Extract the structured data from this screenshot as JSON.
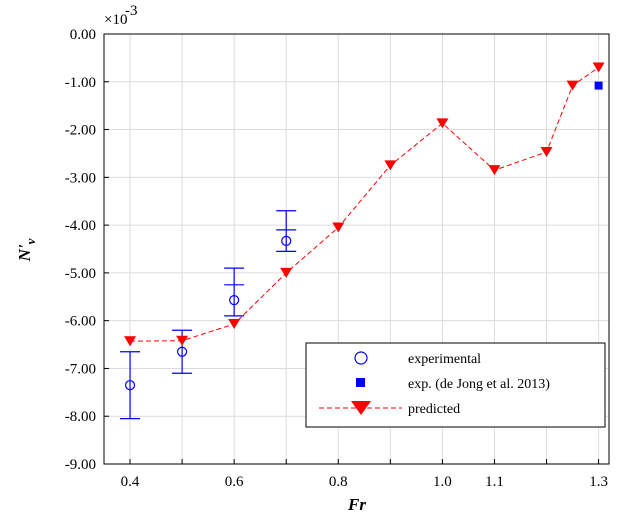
{
  "chart_data": {
    "type": "line",
    "x_tick_labels": [
      "0.4",
      "0.6",
      "0.8",
      "1.0",
      "1.1",
      "1.3"
    ],
    "x_ticks": [
      0.4,
      0.5,
      0.6,
      0.7,
      0.8,
      0.9,
      1.0,
      1.1,
      1.2,
      1.3
    ],
    "x_labeled_ticks": [
      0.4,
      0.6,
      0.8,
      1.0,
      1.1,
      1.3
    ],
    "y_tick_labels": [
      "0.00",
      "-1.00",
      "-2.00",
      "-3.00",
      "-4.00",
      "-5.00",
      "-6.00",
      "-7.00",
      "-8.00",
      "-9.00"
    ],
    "y_ticks": [
      0,
      -1,
      -2,
      -3,
      -4,
      -5,
      -6,
      -7,
      -8,
      -9
    ],
    "y_exponent_base": "×10",
    "y_exponent_power": "-3",
    "xlabel": "Fr",
    "ylabel_main": "N'",
    "ylabel_sub": "v",
    "xlim": [
      0.35,
      1.32
    ],
    "ylim": [
      -9,
      0
    ],
    "grid": true,
    "legend_position": "bottom-right",
    "colors": {
      "experimental": "#0000ff",
      "dejong": "#0000ff",
      "predicted": "#ff0000",
      "grid": "#dcdcdc"
    },
    "series": [
      {
        "name": "experimental",
        "marker": "open-circle",
        "points": [
          {
            "x": 0.4,
            "y": -7.35,
            "err_low": -8.05,
            "err_high": -6.65
          },
          {
            "x": 0.5,
            "y": -6.65,
            "err_low": -7.1,
            "err_high": -6.2
          },
          {
            "x": 0.6,
            "y": -5.57,
            "err_low": -5.9,
            "err_high": -4.9,
            "mid_tick": -5.25
          },
          {
            "x": 0.7,
            "y": -4.33,
            "err_low": -4.55,
            "err_high": -3.7,
            "mid_tick": -4.1
          }
        ]
      },
      {
        "name": "exp. (de Jong et al. 2013)",
        "marker": "filled-square",
        "points": [
          {
            "x": 1.3,
            "y": -1.08
          }
        ]
      },
      {
        "name": "predicted",
        "marker": "filled-down-triangle",
        "line": "dashed",
        "points": [
          {
            "x": 0.4,
            "y": -6.43
          },
          {
            "x": 0.5,
            "y": -6.42
          },
          {
            "x": 0.6,
            "y": -6.07
          },
          {
            "x": 0.7,
            "y": -5.0
          },
          {
            "x": 0.8,
            "y": -4.05
          },
          {
            "x": 0.9,
            "y": -2.75
          },
          {
            "x": 1.0,
            "y": -1.87
          },
          {
            "x": 1.1,
            "y": -2.85
          },
          {
            "x": 1.2,
            "y": -2.47
          },
          {
            "x": 1.25,
            "y": -1.08
          },
          {
            "x": 1.3,
            "y": -0.7
          }
        ]
      }
    ]
  }
}
